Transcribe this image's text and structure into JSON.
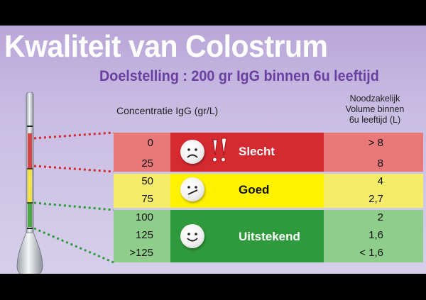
{
  "title": "Kwaliteit van Colostrum",
  "subtitle": "Doelstelling : 200 gr IgG binnen 6u leeftijd",
  "columns": {
    "left_header": "Concentratie IgG (gr/L)",
    "right_header": [
      "Noodzakelijk",
      "Volume binnen",
      "6u leeftijd (L)"
    ]
  },
  "rows": [
    {
      "concentration": "0",
      "volume": "> 8"
    },
    {
      "concentration": "25",
      "volume": "8"
    },
    {
      "concentration": "50",
      "volume": "4"
    },
    {
      "concentration": "75",
      "volume": "2,7"
    },
    {
      "concentration": "100",
      "volume": "2"
    },
    {
      "concentration": "125",
      "volume": "1,6"
    },
    {
      "concentration": ">125",
      "volume": "< 1,6"
    }
  ],
  "categories": [
    {
      "label": "Slecht",
      "face": "sad-face-icon",
      "color": "#d42a30",
      "text_color": "#ffffff"
    },
    {
      "label": "Goed",
      "face": "neutral-face-icon",
      "color": "#fff200",
      "text_color": "#111111"
    },
    {
      "label": "Uitstekend",
      "face": "happy-face-icon",
      "color": "#2f9a3b",
      "text_color": "#ffffff"
    }
  ],
  "colors": {
    "band_red": "#e8787a",
    "band_yellow": "#f5ec6a",
    "band_green": "#8fce8a",
    "title": "#ffffff",
    "subtitle": "#6a3fa0"
  },
  "icons": [
    "hydrometer-icon",
    "exclamation-icon"
  ]
}
